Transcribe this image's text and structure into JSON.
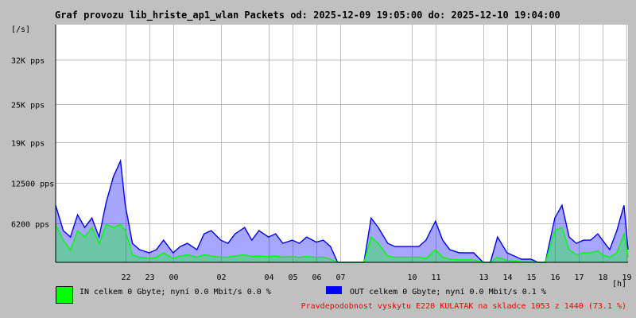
{
  "chart_title": "Graf provozu lib_hriste_ap1_wlan Packets od: 2025-12-09 19:05:00 do: 2025-12-10 19:04:00",
  "legend": {
    "in": {
      "label": "IN celkem 0 Gbyte; nyní   0.0 Mbit/s 0.0 %",
      "color": "#00ff00"
    },
    "out": {
      "label": "OUT celkem 0 Gbyte; nyní   0.0 Mbit/s 0.1 %",
      "color": "#0000ff"
    }
  },
  "footer": {
    "text": "Pravdepodobnost vyskytu E220 KULATAK na skladce 1053 z 1440 (73.1 %)",
    "color": "#ff0000"
  },
  "chart_data": {
    "type": "area",
    "title": "Graf provozu lib_hriste_ap1_wlan Packets od: 2025-12-09 19:05:00 do: 2025-12-10 19:04:00",
    "ylabel": "[/s]",
    "xlabel": "[h]",
    "ylim": [
      0,
      37500
    ],
    "y_ticks": [
      {
        "value": 6200,
        "label": "6200 pps"
      },
      {
        "value": 12500,
        "label": "12500 pps"
      },
      {
        "value": 19000,
        "label": "19K pps"
      },
      {
        "value": 25000,
        "label": "25K pps"
      },
      {
        "value": 32000,
        "label": "32K pps"
      }
    ],
    "x_tick_labels": [
      "22",
      "23",
      "00",
      "02",
      "04",
      "05",
      "06",
      "07",
      "10",
      "11",
      "13",
      "14",
      "15",
      "16",
      "17",
      "18",
      "19"
    ],
    "x_ticks_hours": [
      22,
      23,
      24,
      26,
      28,
      29,
      30,
      31,
      34,
      35,
      37,
      38,
      39,
      40,
      41,
      42,
      43
    ],
    "x_range_hours": [
      19.08,
      43.07
    ],
    "grid": true,
    "series": [
      {
        "name": "OUT",
        "color": "#0000ff",
        "x": [
          19.08,
          19.4,
          19.7,
          20.0,
          20.3,
          20.6,
          20.9,
          21.2,
          21.5,
          21.8,
          22.0,
          22.3,
          22.6,
          23.0,
          23.3,
          23.6,
          24.0,
          24.3,
          24.6,
          25.0,
          25.3,
          25.6,
          26.0,
          26.3,
          26.6,
          27.0,
          27.3,
          27.6,
          28.0,
          28.3,
          28.6,
          29.0,
          29.3,
          29.6,
          30.0,
          30.3,
          30.6,
          30.9,
          31.2,
          31.5,
          31.8,
          32.0,
          32.3,
          32.6,
          33.0,
          33.3,
          33.6,
          34.0,
          34.3,
          34.6,
          35.0,
          35.3,
          35.6,
          36.0,
          36.3,
          36.6,
          37.0,
          37.3,
          37.6,
          38.0,
          38.3,
          38.6,
          39.0,
          39.3,
          39.6,
          40.0,
          40.3,
          40.6,
          40.9,
          41.2,
          41.5,
          41.8,
          42.0,
          42.3,
          42.6,
          42.9,
          43.07
        ],
        "values": [
          9000,
          5000,
          4000,
          7500,
          5500,
          7000,
          4000,
          9500,
          13500,
          16000,
          9000,
          3000,
          2000,
          1500,
          2000,
          3500,
          1500,
          2500,
          3000,
          2000,
          4500,
          5000,
          3500,
          3000,
          4500,
          5500,
          3500,
          5000,
          4000,
          4500,
          3000,
          3500,
          3000,
          4000,
          3200,
          3500,
          2500,
          0,
          0,
          0,
          0,
          0,
          7000,
          5500,
          3000,
          2500,
          2500,
          2500,
          2500,
          3500,
          6500,
          3500,
          2000,
          1500,
          1500,
          1500,
          0,
          0,
          4000,
          1500,
          1000,
          500,
          500,
          0,
          0,
          7000,
          9000,
          4000,
          3000,
          3500,
          3500,
          4500,
          3500,
          2000,
          5000,
          9000,
          2000
        ]
      },
      {
        "name": "IN",
        "color": "#00ff00",
        "x": [
          19.08,
          19.4,
          19.7,
          20.0,
          20.3,
          20.6,
          20.9,
          21.2,
          21.5,
          21.8,
          22.0,
          22.3,
          22.6,
          23.0,
          23.3,
          23.6,
          24.0,
          24.3,
          24.6,
          25.0,
          25.3,
          25.6,
          26.0,
          26.3,
          26.6,
          27.0,
          27.3,
          27.6,
          28.0,
          28.3,
          28.6,
          29.0,
          29.3,
          29.6,
          30.0,
          30.3,
          30.6,
          30.9,
          31.2,
          31.5,
          31.8,
          32.0,
          32.3,
          32.6,
          33.0,
          33.3,
          33.6,
          34.0,
          34.3,
          34.6,
          35.0,
          35.3,
          35.6,
          36.0,
          36.3,
          36.6,
          37.0,
          37.3,
          37.6,
          38.0,
          38.3,
          38.6,
          39.0,
          39.3,
          39.6,
          40.0,
          40.3,
          40.6,
          40.9,
          41.2,
          41.5,
          41.8,
          42.0,
          42.3,
          42.6,
          42.9,
          43.07
        ],
        "values": [
          6000,
          3500,
          2000,
          5000,
          4000,
          5500,
          3000,
          6000,
          5500,
          6000,
          5000,
          1200,
          800,
          600,
          800,
          1500,
          600,
          1000,
          1200,
          800,
          1200,
          1000,
          800,
          800,
          1000,
          1200,
          900,
          1000,
          900,
          1000,
          800,
          900,
          800,
          900,
          800,
          800,
          500,
          0,
          0,
          0,
          0,
          0,
          4000,
          3000,
          1000,
          800,
          800,
          800,
          800,
          600,
          2000,
          800,
          500,
          400,
          400,
          400,
          0,
          0,
          800,
          300,
          200,
          100,
          100,
          0,
          0,
          5000,
          5500,
          2000,
          1200,
          1500,
          1500,
          1800,
          1200,
          800,
          1500,
          4500,
          800
        ]
      }
    ]
  }
}
